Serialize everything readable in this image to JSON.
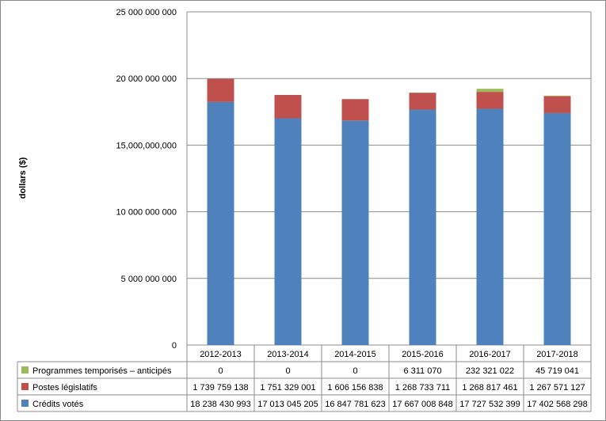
{
  "chart_data": {
    "type": "bar",
    "stacked": true,
    "ylabel": "dollars ($)",
    "ylim": [
      0,
      25000000000
    ],
    "ytick_values": [
      0,
      5000000000,
      10000000000,
      15000000000,
      20000000000,
      25000000000
    ],
    "ytick_labels": [
      "0",
      "5 000 000 000",
      "10 000 000 000",
      "15,000,000,000",
      "20 000 000 000",
      "25 000 000 000"
    ],
    "grid": true,
    "legend": "data-table-left",
    "categories": [
      "2012-2013",
      "2013-2014",
      "2014-2015",
      "2015-2016",
      "2016-2017",
      "2017-2018"
    ],
    "series": [
      {
        "name": "Crédits votés",
        "color": "#4F81BD",
        "values": [
          18238430993,
          17013045205,
          16847781623,
          17667008848,
          17727532399,
          17402568298
        ],
        "labels": [
          "18 238 430 993",
          "17 013 045 205",
          "16 847 781 623",
          "17 667 008 848",
          "17 727 532 399",
          "17 402 568 298"
        ]
      },
      {
        "name": "Postes législatifs",
        "color": "#C0504D",
        "values": [
          1739759138,
          1751329001,
          1606156838,
          1268733711,
          1268817461,
          1267571127
        ],
        "labels": [
          "1 739 759 138",
          "1 751 329 001",
          "1 606 156 838",
          "1 268 733 711",
          "1 268 817 461",
          "1 267 571 127"
        ]
      },
      {
        "name": "Programmes temporisés – anticipés",
        "color": "#9BBB59",
        "values": [
          0,
          0,
          0,
          6311070,
          232321022,
          45719041
        ],
        "labels": [
          "0",
          "0",
          "0",
          "6 311 070",
          "232 321 022",
          "45 719 041"
        ]
      }
    ]
  }
}
